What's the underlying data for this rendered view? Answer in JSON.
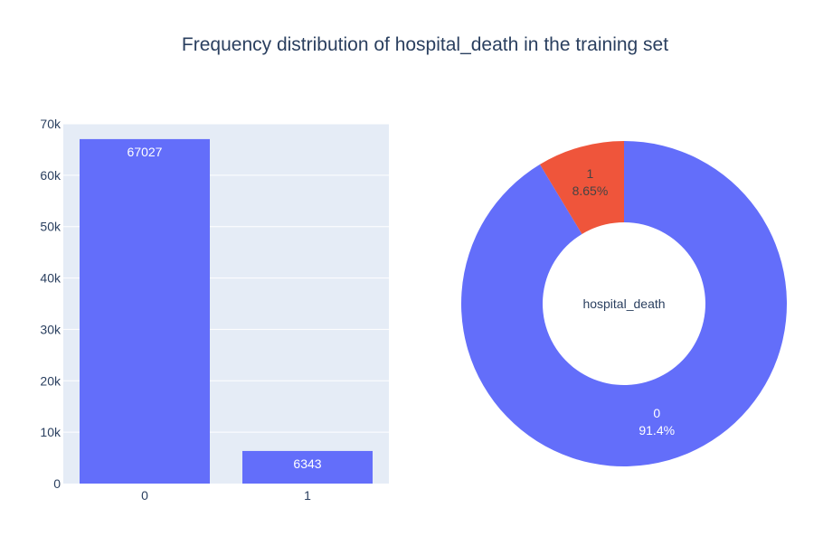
{
  "title": "Frequency distribution of hospital_death in the training set",
  "colors": {
    "bar": "#636efa",
    "plot_background": "#e5ecf6",
    "grid": "#ffffff",
    "text": "#2a3f5f",
    "slice_0": "#636efa",
    "slice_1": "#ef553b"
  },
  "chart_data": [
    {
      "type": "bar",
      "categories": [
        "0",
        "1"
      ],
      "values": [
        67027,
        6343
      ],
      "data_labels": [
        "67027",
        "6343"
      ],
      "ylim": [
        0,
        70000
      ],
      "yticks": [
        0,
        10000,
        20000,
        30000,
        40000,
        50000,
        60000,
        70000
      ],
      "ytick_labels": [
        "0",
        "10k",
        "20k",
        "30k",
        "40k",
        "50k",
        "60k",
        "70k"
      ],
      "grid": true
    },
    {
      "type": "pie",
      "hole": true,
      "center_label": "hospital_death",
      "slices": [
        {
          "label": "0",
          "value": 67027,
          "percent_label": "91.4%",
          "color": "#636efa"
        },
        {
          "label": "1",
          "value": 6343,
          "percent_label": "8.65%",
          "color": "#ef553b"
        }
      ]
    }
  ]
}
